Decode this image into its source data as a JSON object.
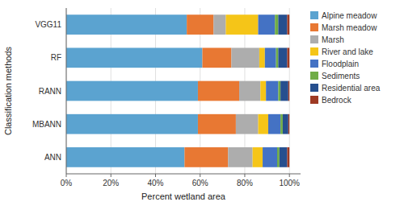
{
  "chart_data": {
    "type": "bar",
    "orientation": "horizontal",
    "stacked": true,
    "grid": true,
    "legend": "right",
    "xlabel": "Percent wetland area",
    "ylabel": "Classification methods",
    "categories": [
      "ANN",
      "MBANN",
      "RANN",
      "RF",
      "VGG11"
    ],
    "xlim": [
      0,
      105
    ],
    "xticks": [
      {
        "value": 0,
        "label": "0%"
      },
      {
        "value": 20,
        "label": "20%"
      },
      {
        "value": 40,
        "label": "40%"
      },
      {
        "value": 60,
        "label": "60%"
      },
      {
        "value": 80,
        "label": "80%"
      },
      {
        "value": 100,
        "label": "100%"
      }
    ],
    "series": [
      {
        "name": "Alpine meadow",
        "color": "#5BA3D0",
        "values": [
          53.0,
          59.0,
          59.0,
          61.0,
          54.0
        ]
      },
      {
        "name": "Marsh meadow",
        "color": "#E87833",
        "values": [
          19.5,
          17.0,
          18.5,
          13.0,
          12.0
        ]
      },
      {
        "name": "Marsh",
        "color": "#ADADAD",
        "values": [
          11.0,
          10.0,
          9.5,
          12.5,
          5.5
        ]
      },
      {
        "name": "River and lake",
        "color": "#F5C518",
        "values": [
          4.5,
          4.5,
          2.5,
          2.5,
          14.5
        ]
      },
      {
        "name": "Floodplain",
        "color": "#4472C4",
        "values": [
          6.5,
          5.5,
          5.5,
          5.0,
          7.5
        ]
      },
      {
        "name": "Sediments",
        "color": "#70AD47",
        "values": [
          1.0,
          1.0,
          1.0,
          1.0,
          1.5
        ]
      },
      {
        "name": "Residential area",
        "color": "#264F8E",
        "values": [
          3.5,
          2.5,
          3.5,
          4.0,
          4.0
        ]
      },
      {
        "name": "Bedrock",
        "color": "#9E3A24",
        "values": [
          1.0,
          0.5,
          0.5,
          1.0,
          1.0
        ]
      }
    ]
  }
}
